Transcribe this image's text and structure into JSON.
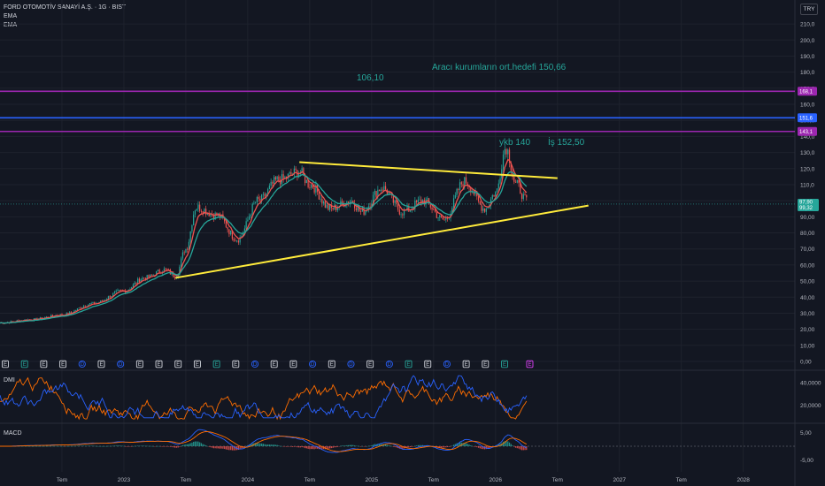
{
  "header": {
    "symbol_line": "FORD OTOMOTİV SANAYİ A.Ş. · 1G · BIST",
    "indicators": [
      "EMA",
      "EMA"
    ]
  },
  "currency": "TRY",
  "colors": {
    "background": "#131722",
    "grid": "#1e222d",
    "up": "#26a69a",
    "down": "#ef5350",
    "ema_fast": "#ef5350",
    "ema_slow": "#26a69a",
    "trendline": "#ffeb3b",
    "level_purple": "#9c27b0",
    "level_blue": "#2962ff",
    "dmi_plus": "#2962ff",
    "dmi_minus": "#ff6d00",
    "annotation": "#26a69a"
  },
  "annotations": {
    "target_label": "106,10",
    "analyst_label": "Aracı kurumların ort.hedefi 150,66",
    "ykb_label": "ykb 140",
    "is_label": "İş 152,50"
  },
  "chart_data": [
    {
      "type": "candlestick",
      "pane": "price",
      "y_ticks": [
        "210,0",
        "200,0",
        "190,0",
        "180,0",
        "170,0",
        "160,0",
        "150,0",
        "140,0",
        "130,0",
        "120,0",
        "110,0",
        "100,0",
        "90,00",
        "80,00",
        "70,00",
        "60,00",
        "50,00",
        "40,00",
        "30,00",
        "20,00",
        "10,00",
        "0,00"
      ],
      "ylim": [
        0,
        215
      ],
      "x_ticks": [
        "Tem",
        "2023",
        "Tem",
        "2024",
        "Tem",
        "2025",
        "Tem",
        "2026",
        "Tem",
        "2027",
        "Tem",
        "2028"
      ],
      "x_tick_dates": [
        "2022-07",
        "2023-01",
        "2023-07",
        "2024-01",
        "2024-07",
        "2025-01",
        "2025-07",
        "2026-01",
        "2026-07",
        "2027-01",
        "2027-07",
        "2028-01"
      ],
      "xlim": [
        "2022-01",
        "2028-06"
      ],
      "series_price_path": [
        [
          "2022-01",
          24
        ],
        [
          "2022-04",
          26
        ],
        [
          "2022-07",
          29
        ],
        [
          "2022-10",
          36
        ],
        [
          "2023-01",
          44
        ],
        [
          "2023-03",
          52
        ],
        [
          "2023-05",
          57
        ],
        [
          "2023-06",
          53
        ],
        [
          "2023-07",
          70
        ],
        [
          "2023-08",
          96
        ],
        [
          "2023-10",
          91
        ],
        [
          "2023-12",
          76
        ],
        [
          "2024-02",
          100
        ],
        [
          "2024-04",
          113
        ],
        [
          "2024-06",
          118
        ],
        [
          "2024-07",
          110
        ],
        [
          "2024-09",
          95
        ],
        [
          "2024-11",
          100
        ],
        [
          "2024-12",
          93
        ],
        [
          "2025-02",
          108
        ],
        [
          "2025-04",
          93
        ],
        [
          "2025-06",
          100
        ],
        [
          "2025-08",
          88
        ],
        [
          "2025-10",
          112
        ],
        [
          "2025-12",
          95
        ],
        [
          "2026-01",
          105
        ],
        [
          "2026-02",
          133
        ],
        [
          "2026-03",
          110
        ],
        [
          "2026-04",
          100
        ]
      ],
      "horizontal_levels": [
        {
          "label": "168,1",
          "value": 168.1,
          "color": "#9c27b0"
        },
        {
          "label": "151,6",
          "value": 151.6,
          "color": "#2962ff"
        },
        {
          "label": "143,1",
          "value": 143.1,
          "color": "#9c27b0"
        }
      ],
      "last_price_label": "97,90",
      "last_price_sub": "99,32",
      "trendlines": [
        {
          "from": [
            "2024-06",
            124
          ],
          "to": [
            "2026-07",
            114
          ]
        },
        {
          "from": [
            "2023-06",
            52
          ],
          "to": [
            "2026-10",
            97
          ]
        }
      ],
      "events": [
        "E",
        "E",
        "E",
        "E",
        "D",
        "E",
        "D",
        "E",
        "E",
        "E",
        "E",
        "E",
        "E",
        "D",
        "E",
        "E",
        "D",
        "E",
        "D",
        "E",
        "D",
        "E",
        "E",
        "D",
        "E",
        "E",
        "E"
      ]
    },
    {
      "type": "line",
      "pane": "DMI",
      "title": "DMI",
      "y_ticks": [
        "40,0000",
        "20,0000"
      ],
      "ylim": [
        5,
        50
      ],
      "series": [
        {
          "color": "#2962ff"
        },
        {
          "color": "#ff6d00"
        }
      ]
    },
    {
      "type": "bar",
      "pane": "MACD",
      "title": "MACD",
      "y_ticks": [
        "5,00",
        "-5,00"
      ],
      "ylim": [
        -8,
        8
      ]
    }
  ]
}
